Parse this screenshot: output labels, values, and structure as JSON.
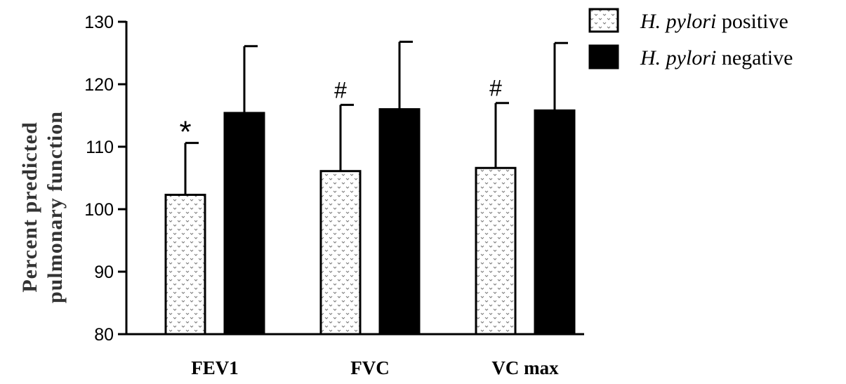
{
  "chart_data": {
    "type": "bar",
    "categories": [
      "FEV1",
      "FVC",
      "VC max"
    ],
    "series": [
      {
        "name_italic": "H. pylori",
        "name_rest": "positive",
        "values": [
          102.3,
          106.1,
          106.6
        ],
        "errors": [
          8.3,
          10.6,
          10.4
        ],
        "annotations": [
          "*",
          "#",
          "#"
        ],
        "fill": "dotted",
        "color": "#ffffff"
      },
      {
        "name_italic": "H. pylori",
        "name_rest": "negative",
        "values": [
          115.4,
          116.0,
          115.8
        ],
        "errors": [
          10.7,
          10.8,
          10.8
        ],
        "annotations": [
          "",
          "",
          ""
        ],
        "fill": "solid",
        "color": "#000000"
      }
    ],
    "ylabel_line1": "Percent predicted",
    "ylabel_line2": "pulmonary function",
    "xlabel": "",
    "ylim": [
      80,
      130
    ],
    "yticks": [
      "80",
      "90",
      "100",
      "110",
      "120",
      "130"
    ],
    "grid": false,
    "legend_position": "top-right"
  }
}
